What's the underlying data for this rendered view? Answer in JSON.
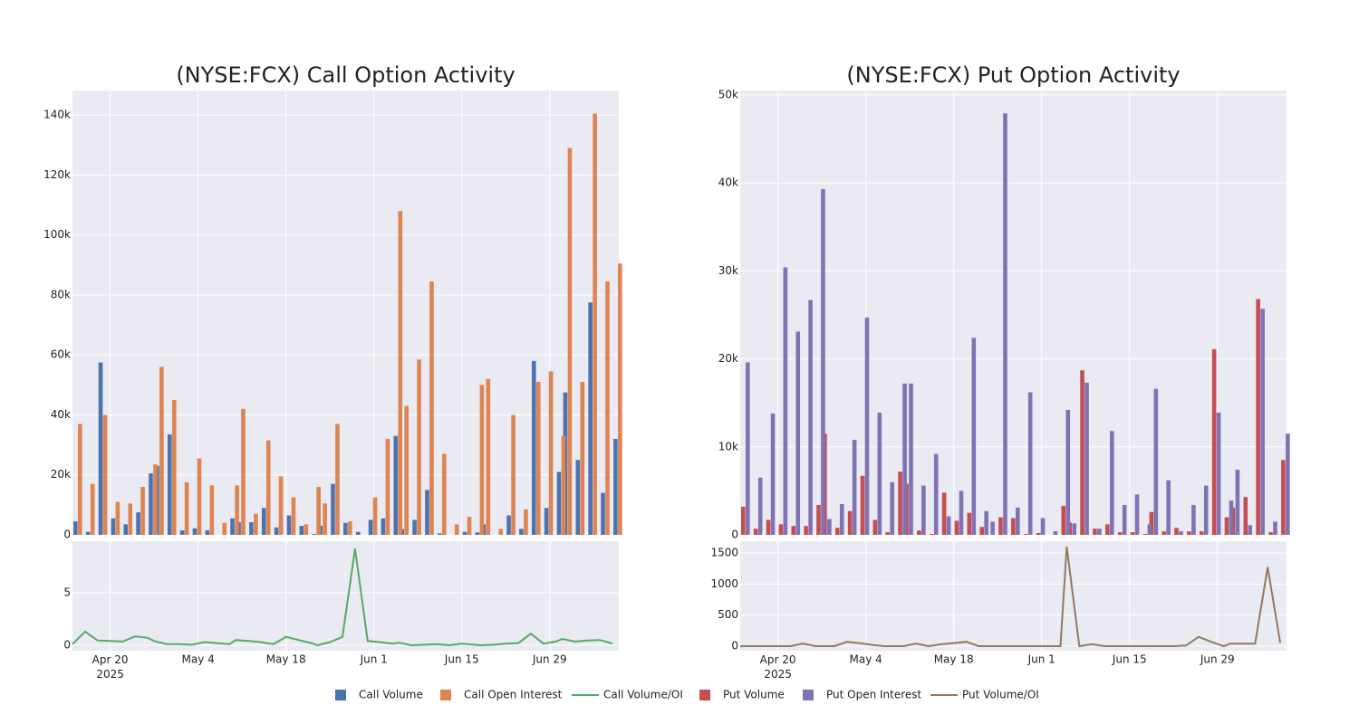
{
  "chart_data": [
    {
      "type": "bar",
      "title": "(NYSE:FCX) Call Option Activity",
      "x": [
        "2025-04-14",
        "2025-04-16",
        "2025-04-18",
        "2025-04-20",
        "2025-04-22",
        "2025-04-24",
        "2025-04-26",
        "2025-04-27",
        "2025-04-29",
        "2025-05-01",
        "2025-05-03",
        "2025-05-05",
        "2025-05-07",
        "2025-05-09",
        "2025-05-10",
        "2025-05-12",
        "2025-05-14",
        "2025-05-16",
        "2025-05-18",
        "2025-05-20",
        "2025-05-22",
        "2025-05-23",
        "2025-05-25",
        "2025-05-27",
        "2025-05-29",
        "2025-05-31",
        "2025-06-02",
        "2025-06-04",
        "2025-06-05",
        "2025-06-07",
        "2025-06-09",
        "2025-06-11",
        "2025-06-13",
        "2025-06-15",
        "2025-06-17",
        "2025-06-18",
        "2025-06-20",
        "2025-06-22",
        "2025-06-24",
        "2025-06-26",
        "2025-06-28",
        "2025-06-30",
        "2025-07-01",
        "2025-07-03",
        "2025-07-05",
        "2025-07-07",
        "2025-07-09"
      ],
      "series": [
        {
          "name": "Call Volume",
          "color": "#4c72b0",
          "values": [
            4500,
            1000,
            57500,
            5500,
            3500,
            7500,
            20500,
            23000,
            33500,
            1500,
            2200,
            1500,
            0,
            5500,
            4200,
            4200,
            9000,
            2500,
            6500,
            3000,
            300,
            3000,
            17000,
            4000,
            1000,
            5000,
            5500,
            33000,
            2000,
            5000,
            15000,
            500,
            0,
            1000,
            800,
            3500,
            0,
            6500,
            2000,
            58000,
            9000,
            21000,
            47500,
            25000,
            77500,
            14000,
            32000
          ]
        },
        {
          "name": "Call Open Interest",
          "color": "#dd8452",
          "values": [
            37000,
            17000,
            40000,
            11000,
            10500,
            16000,
            23500,
            56000,
            45000,
            17500,
            25500,
            16500,
            4000,
            16500,
            42000,
            7000,
            31500,
            19500,
            12500,
            3500,
            16000,
            10500,
            37000,
            4500,
            0,
            12500,
            32000,
            108000,
            43000,
            58500,
            84500,
            27000,
            3500,
            6000,
            50000,
            52000,
            2000,
            40000,
            8500,
            51000,
            54500,
            33000,
            129000,
            51000,
            140500,
            84500,
            90500
          ]
        },
        {
          "name": "Call Volume/OI",
          "color": "#55a868",
          "type": "line",
          "axis": "y2",
          "values": [
            0.1,
            1.3,
            0.45,
            0.4,
            0.35,
            0.85,
            0.7,
            0.4,
            0.1,
            0.1,
            0.05,
            0.3,
            0.2,
            0.1,
            0.5,
            0.4,
            0.3,
            0.1,
            0.8,
            0.5,
            0.2,
            0,
            0.3,
            0.8,
            9.2,
            0.4,
            0.3,
            0.15,
            0.25,
            0,
            0.05,
            0.1,
            0,
            0.15,
            0.05,
            0,
            0.05,
            0.15,
            0.2,
            1.1,
            0.15,
            0.35,
            0.6,
            0.35,
            0.45,
            0.5,
            0.15
          ]
        }
      ],
      "xlim": [
        "2025-04-14",
        "2025-07-10"
      ],
      "xticks": [
        {
          "value": "2025-04-20",
          "label": "Apr 20\n2025"
        },
        {
          "value": "2025-05-04",
          "label": "May 4"
        },
        {
          "value": "2025-05-18",
          "label": "May 18"
        },
        {
          "value": "2025-06-01",
          "label": "Jun 1"
        },
        {
          "value": "2025-06-15",
          "label": "Jun 15"
        },
        {
          "value": "2025-06-29",
          "label": "Jun 29"
        }
      ],
      "ylim": [
        0,
        148200
      ],
      "yticks": [
        0,
        {
          "value": 20000,
          "label": "20k"
        },
        {
          "value": 40000,
          "label": "40k"
        },
        {
          "value": 60000,
          "label": "60k"
        },
        {
          "value": 80000,
          "label": "80k"
        },
        {
          "value": 100000,
          "label": "100k"
        },
        {
          "value": 120000,
          "label": "120k"
        },
        {
          "value": 140000,
          "label": "140k"
        }
      ],
      "y2lim": [
        -0.52,
        9.91
      ],
      "y2ticks": [
        0,
        5
      ],
      "grid": true
    },
    {
      "type": "bar",
      "title": "(NYSE:FCX) Put Option Activity",
      "x": [
        "2025-04-14",
        "2025-04-16",
        "2025-04-18",
        "2025-04-20",
        "2025-04-22",
        "2025-04-24",
        "2025-04-26",
        "2025-04-27",
        "2025-04-29",
        "2025-05-01",
        "2025-05-03",
        "2025-05-05",
        "2025-05-07",
        "2025-05-09",
        "2025-05-10",
        "2025-05-12",
        "2025-05-14",
        "2025-05-16",
        "2025-05-18",
        "2025-05-20",
        "2025-05-22",
        "2025-05-23",
        "2025-05-25",
        "2025-05-27",
        "2025-05-29",
        "2025-05-31",
        "2025-06-02",
        "2025-06-04",
        "2025-06-05",
        "2025-06-07",
        "2025-06-09",
        "2025-06-11",
        "2025-06-13",
        "2025-06-15",
        "2025-06-17",
        "2025-06-18",
        "2025-06-20",
        "2025-06-22",
        "2025-06-24",
        "2025-06-26",
        "2025-06-28",
        "2025-06-30",
        "2025-07-01",
        "2025-07-03",
        "2025-07-05",
        "2025-07-07",
        "2025-07-09"
      ],
      "series": [
        {
          "name": "Put Volume",
          "color": "#c44e52",
          "values": [
            3200,
            700,
            1700,
            1200,
            1000,
            1000,
            3400,
            11500,
            800,
            2700,
            6700,
            1700,
            300,
            7200,
            5800,
            500,
            100,
            4800,
            1600,
            2500,
            900,
            0,
            2000,
            1900,
            100,
            200,
            0,
            3300,
            1400,
            18700,
            700,
            1200,
            300,
            300,
            100,
            2600,
            400,
            800,
            400,
            400,
            21100,
            2000,
            3100,
            4300,
            26800,
            300,
            8500
          ]
        },
        {
          "name": "Put Open Interest",
          "color": "#8172b3",
          "values": [
            19600,
            6500,
            13800,
            30400,
            23100,
            26700,
            39300,
            1800,
            3500,
            10800,
            24700,
            13900,
            6000,
            17200,
            17200,
            5600,
            9200,
            2100,
            5000,
            22400,
            2700,
            1500,
            47900,
            3100,
            16200,
            1900,
            400,
            14200,
            1300,
            17300,
            700,
            11800,
            3400,
            4600,
            1200,
            16600,
            6200,
            400,
            3400,
            5600,
            13900,
            3900,
            7400,
            1100,
            25700,
            1500,
            11500
          ]
        },
        {
          "name": "Put Volume/OI",
          "color": "#937860",
          "type": "line",
          "axis": "y2",
          "values": [
            0,
            0,
            0,
            0,
            0,
            40,
            0,
            0,
            0,
            70,
            50,
            20,
            0,
            0,
            0,
            40,
            0,
            30,
            50,
            70,
            0,
            0,
            0,
            0,
            0,
            0,
            0,
            0,
            1600,
            0,
            30,
            0,
            0,
            0,
            0,
            0,
            0,
            0,
            10,
            150,
            70,
            0,
            40,
            40,
            40,
            1270,
            50
          ]
        }
      ],
      "xlim": [
        "2025-04-14",
        "2025-07-10"
      ],
      "xticks": [
        {
          "value": "2025-04-20",
          "label": "Apr 20\n2025"
        },
        {
          "value": "2025-05-04",
          "label": "May 4"
        },
        {
          "value": "2025-05-18",
          "label": "May 18"
        },
        {
          "value": "2025-06-01",
          "label": "Jun 1"
        },
        {
          "value": "2025-06-15",
          "label": "Jun 15"
        },
        {
          "value": "2025-06-29",
          "label": "Jun 29"
        }
      ],
      "ylim": [
        0,
        50500
      ],
      "yticks": [
        0,
        {
          "value": 10000,
          "label": "10k"
        },
        {
          "value": 20000,
          "label": "20k"
        },
        {
          "value": 30000,
          "label": "30k"
        },
        {
          "value": 40000,
          "label": "40k"
        },
        {
          "value": 50000,
          "label": "50k"
        }
      ],
      "y2lim": [
        -73,
        1689
      ],
      "y2ticks": [
        0,
        500,
        1000,
        1500
      ],
      "grid": true
    }
  ]
}
